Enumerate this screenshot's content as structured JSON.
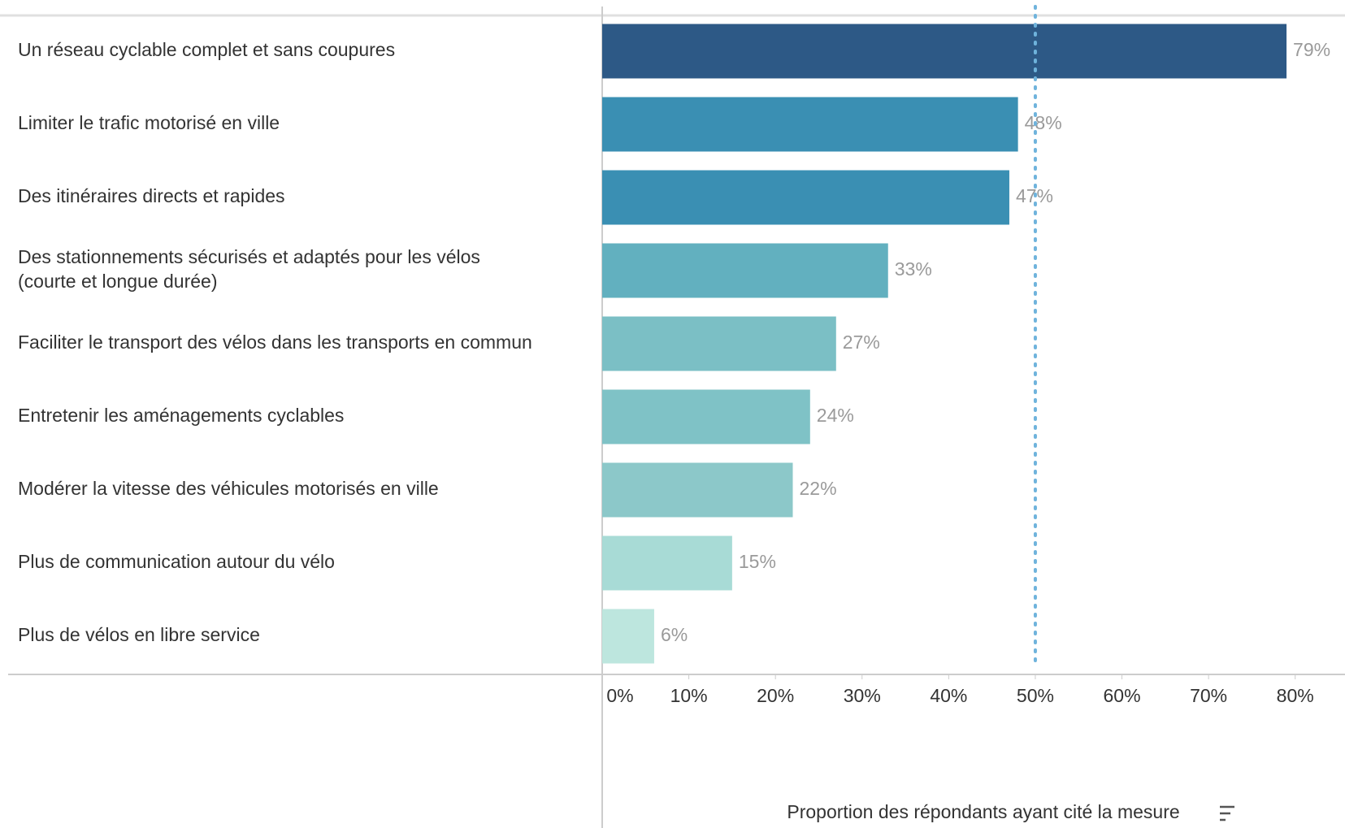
{
  "chart_data": {
    "type": "hbar",
    "categories": [
      "Un réseau cyclable complet et sans coupures",
      "Limiter le trafic motorisé en ville",
      "Des itinéraires directs et rapides",
      "Des stationnements sécurisés et adaptés pour les vélos\n(courte et longue durée)",
      "Faciliter le transport des vélos dans les transports en commun",
      "Entretenir les aménagements cyclables",
      "Modérer la vitesse des véhicules motorisés en ville",
      "Plus de communication autour du vélo",
      "Plus de vélos en libre service"
    ],
    "values": [
      79,
      48,
      47,
      33,
      27,
      24,
      22,
      15,
      6
    ],
    "value_labels": [
      "79%",
      "48%",
      "47%",
      "33%",
      "27%",
      "24%",
      "22%",
      "15%",
      "6%"
    ],
    "colors": [
      "#2d5986",
      "#3a8fb3",
      "#3a8fb3",
      "#62b0bf",
      "#7bbfc5",
      "#7fc2c6",
      "#8cc8c9",
      "#a8dbd6",
      "#bde6de"
    ],
    "xlim": [
      0,
      85
    ],
    "xticks": [
      {
        "value": 0,
        "label": "0%"
      },
      {
        "value": 10,
        "label": "10%"
      },
      {
        "value": 20,
        "label": "20%"
      },
      {
        "value": 30,
        "label": "30%"
      },
      {
        "value": 40,
        "label": "40%"
      },
      {
        "value": 50,
        "label": "50%"
      },
      {
        "value": 60,
        "label": "60%"
      },
      {
        "value": 70,
        "label": "70%"
      },
      {
        "value": 80,
        "label": "80%"
      }
    ],
    "reference_line": 50,
    "xlabel": "Proportion des répondants ayant cité la mesure"
  }
}
